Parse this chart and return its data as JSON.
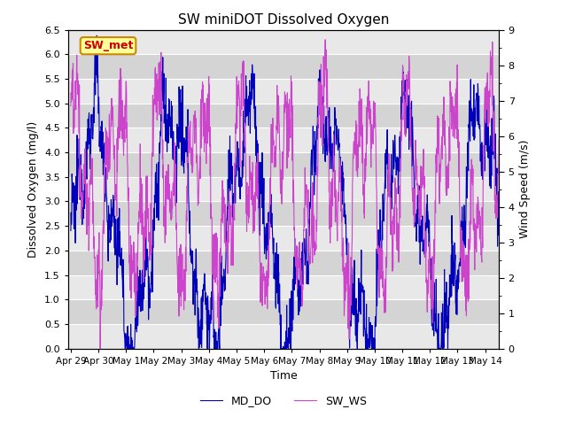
{
  "title": "SW miniDOT Dissolved Oxygen",
  "xlabel": "Time",
  "ylabel_left": "Dissolved Oxygen (mg/l)",
  "ylabel_right": "Wind Speed (m/s)",
  "ylim_left": [
    0.0,
    6.5
  ],
  "ylim_right": [
    0.0,
    9.0
  ],
  "yticks_left": [
    0.0,
    0.5,
    1.0,
    1.5,
    2.0,
    2.5,
    3.0,
    3.5,
    4.0,
    4.5,
    5.0,
    5.5,
    6.0,
    6.5
  ],
  "yticks_right_major": [
    0.0,
    1.0,
    2.0,
    3.0,
    4.0,
    5.0,
    6.0,
    7.0,
    8.0,
    9.0
  ],
  "yticks_right_minor": [
    0.5,
    1.5,
    2.5,
    3.5,
    4.5,
    5.5,
    6.5,
    7.5,
    8.5
  ],
  "line_color_do": "#0000bb",
  "line_color_ws": "#cc44cc",
  "annotation_text": "SW_met",
  "annotation_color": "#cc0000",
  "annotation_bg": "#ffff99",
  "annotation_border": "#cc8800",
  "legend_labels": [
    "MD_DO",
    "SW_WS"
  ],
  "bg_band_colors": [
    "#e8e8e8",
    "#d8d8d8"
  ],
  "n_points": 1500,
  "end_day": 15.5,
  "tick_labels": [
    "Apr 29",
    "Apr 30",
    "May 1",
    "May 2",
    "May 3",
    "May 4",
    "May 5",
    "May 6",
    "May 7",
    "May 8",
    "May 9",
    "May 10",
    "May 11",
    "May 12",
    "May 13",
    "May 14"
  ]
}
